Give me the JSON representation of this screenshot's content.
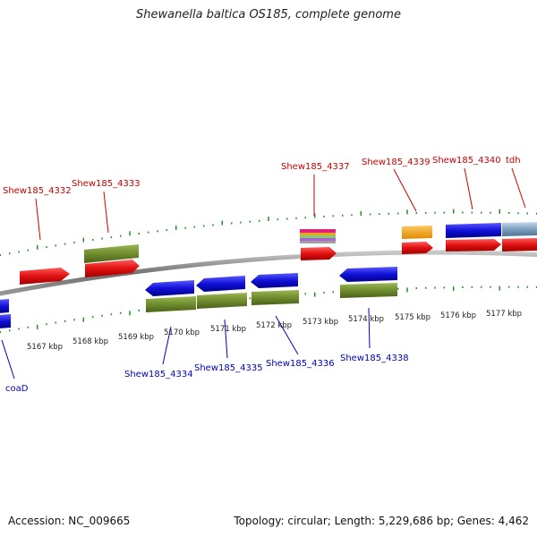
{
  "title": "Shewanella baltica OS185, complete genome",
  "accession": "Accession: NC_009665",
  "summary": "Topology: circular; Length: 5,229,686 bp; Genes: 4,462",
  "colors": {
    "forward_label": "#cc0000",
    "reverse_label": "#0000bb",
    "tick": "#2a8a2a",
    "backbone": "#8a8a8a",
    "gene_red": "#e01010",
    "gene_blue": "#1010d8",
    "gene_olive": "#6f8c2e",
    "gene_orange": "#f5a020"
  },
  "kbp_labels": [
    "5167 kbp",
    "5168 kbp",
    "5169 kbp",
    "5170 kbp",
    "5171 kbp",
    "5172 kbp",
    "5173 kbp",
    "5174 kbp",
    "5175 kbp",
    "5176 kbp",
    "5177 kbp"
  ],
  "forward_labels": [
    "Shew185_4332",
    "Shew185_4333",
    "Shew185_4337",
    "Shew185_4339",
    "Shew185_4340",
    "tdh"
  ],
  "reverse_labels": [
    "coaD",
    "Shew185_4334",
    "Shew185_4335",
    "Shew185_4336",
    "Shew185_4338"
  ]
}
